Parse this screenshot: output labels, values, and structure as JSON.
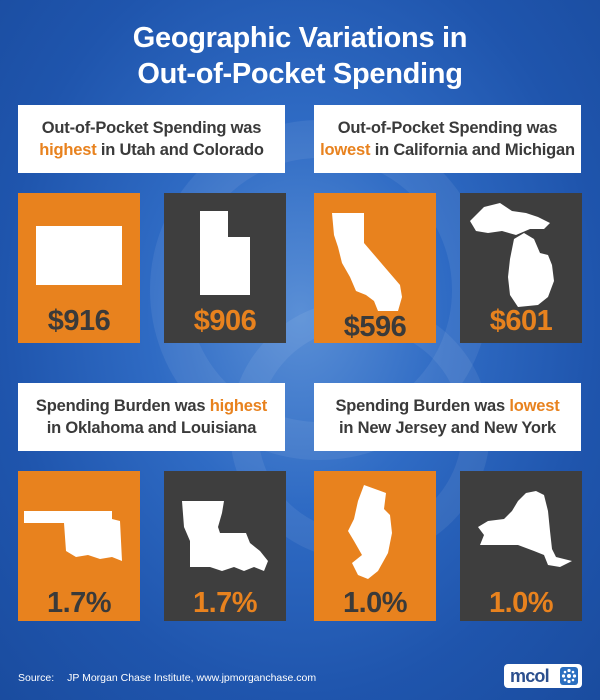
{
  "title": {
    "line1": "Geographic Variations in",
    "line2": "Out-of-Pocket Spending"
  },
  "captions": [
    {
      "before": "Out-of-Pocket Spending was",
      "highlight": "highest",
      "after": "in Utah and Colorado"
    },
    {
      "before": "Out-of-Pocket Spending was",
      "highlight": "lowest",
      "after": "in California and Michigan"
    },
    {
      "before": "Spending Burden was",
      "highlight": "highest",
      "after": "in Oklahoma and Louisiana"
    },
    {
      "before": "Spending Burden was",
      "highlight": "lowest",
      "after": "in New Jersey and New York"
    }
  ],
  "cards": [
    {
      "state_icon": "colorado-icon",
      "value": "$916",
      "color": "#e8821e"
    },
    {
      "state_icon": "utah-icon",
      "value": "$906",
      "color": "#3e3e3e"
    },
    {
      "state_icon": "california-icon",
      "value": "$596",
      "color": "#e8821e"
    },
    {
      "state_icon": "michigan-icon",
      "value": "$601",
      "color": "#3e3e3e"
    },
    {
      "state_icon": "oklahoma-icon",
      "value": "1.7%",
      "color": "#e8821e"
    },
    {
      "state_icon": "louisiana-icon",
      "value": "1.7%",
      "color": "#3e3e3e"
    },
    {
      "state_icon": "new-jersey-icon",
      "value": "1.0%",
      "color": "#e8821e"
    },
    {
      "state_icon": "new-york-icon",
      "value": "1.0%",
      "color": "#3e3e3e"
    }
  ],
  "source": {
    "label": "Source:",
    "text": "JP Morgan Chase Institute, www.jpmorganchase.com"
  },
  "logo": {
    "text": "mcol"
  },
  "colors": {
    "accent_orange": "#e8821e",
    "dark_card": "#3e3e3e",
    "background_blue": "#2f6bc4"
  }
}
